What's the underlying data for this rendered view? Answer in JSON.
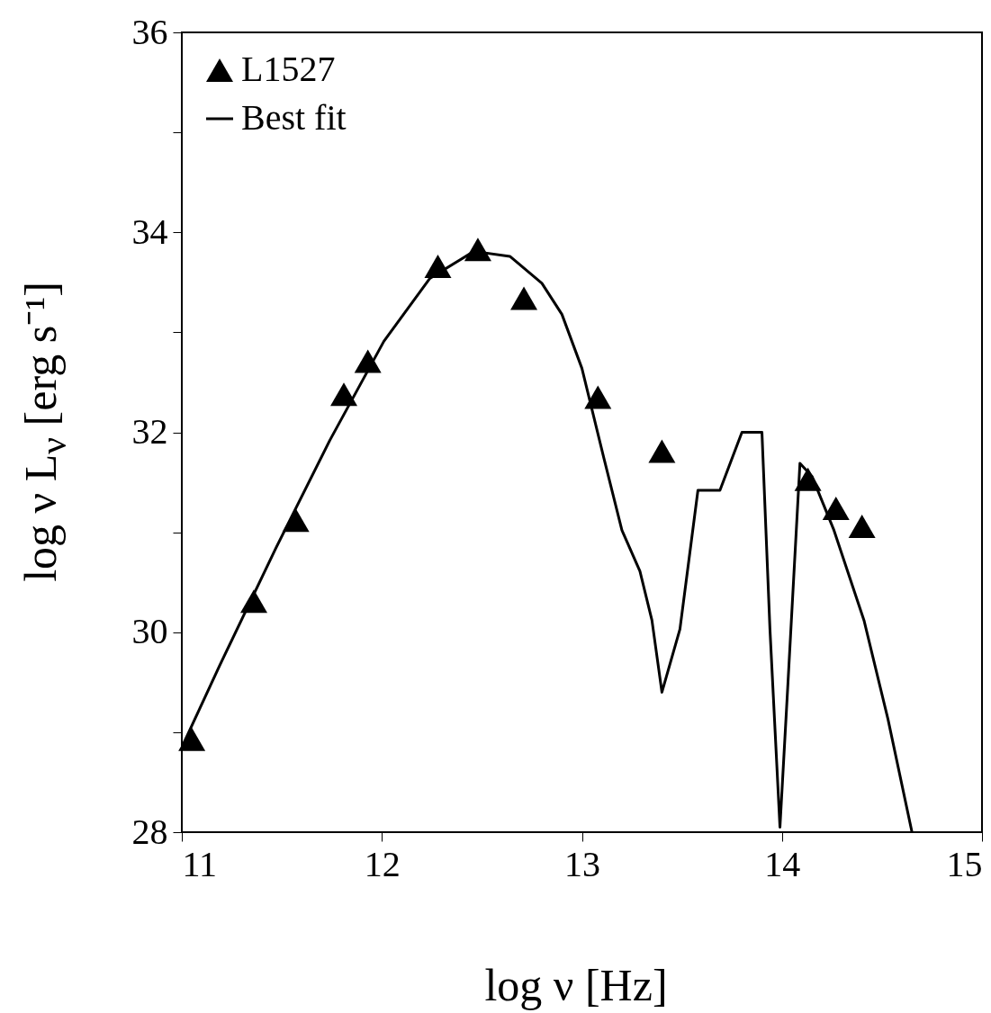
{
  "chart_data": {
    "type": "scatter",
    "xlabel": "log ν [Hz]",
    "ylabel": "log ν L$_{ν}$ [erg s⁻¹]",
    "xlim": [
      11,
      15
    ],
    "ylim": [
      28,
      36
    ],
    "xticks": [
      11,
      12,
      13,
      14,
      15
    ],
    "yticks": [
      28,
      {
        "value": 29,
        "label": null
      },
      30,
      {
        "value": 31,
        "label": null
      },
      32,
      {
        "value": 33,
        "label": null
      },
      34,
      {
        "value": 35,
        "label": null
      },
      36
    ],
    "legend": "top left",
    "grid": false,
    "series": [
      {
        "name": "L1527",
        "marker": "triangle",
        "color": "#000000",
        "x": [
          11.05,
          11.36,
          11.57,
          11.81,
          11.93,
          12.28,
          12.48,
          12.71,
          13.08,
          13.4,
          14.13,
          14.27,
          14.4
        ],
        "values": [
          28.93,
          30.31,
          31.12,
          32.38,
          32.71,
          33.66,
          33.83,
          33.34,
          32.35,
          31.81,
          31.53,
          31.24,
          31.06
        ]
      },
      {
        "name": "Best fit",
        "type": "line",
        "line_style": "solid",
        "color": "#000000",
        "x": [
          11.0,
          11.19,
          11.47,
          11.74,
          12.01,
          12.24,
          12.46,
          12.64,
          12.8,
          12.9,
          13.0,
          13.11,
          13.2,
          13.29,
          13.35,
          13.4,
          13.49,
          13.58,
          13.69,
          13.8,
          13.9,
          13.94,
          13.99,
          14.03,
          14.09,
          14.15,
          14.26,
          14.41,
          14.53,
          14.65
        ],
        "values": [
          28.85,
          29.67,
          30.84,
          31.92,
          32.91,
          33.54,
          33.81,
          33.76,
          33.49,
          33.18,
          32.64,
          31.74,
          31.02,
          30.61,
          30.12,
          29.4,
          30.03,
          31.42,
          31.42,
          32.0,
          32.0,
          30.03,
          28.05,
          29.49,
          31.69,
          31.56,
          31.02,
          30.12,
          29.13,
          28.0
        ]
      }
    ]
  }
}
